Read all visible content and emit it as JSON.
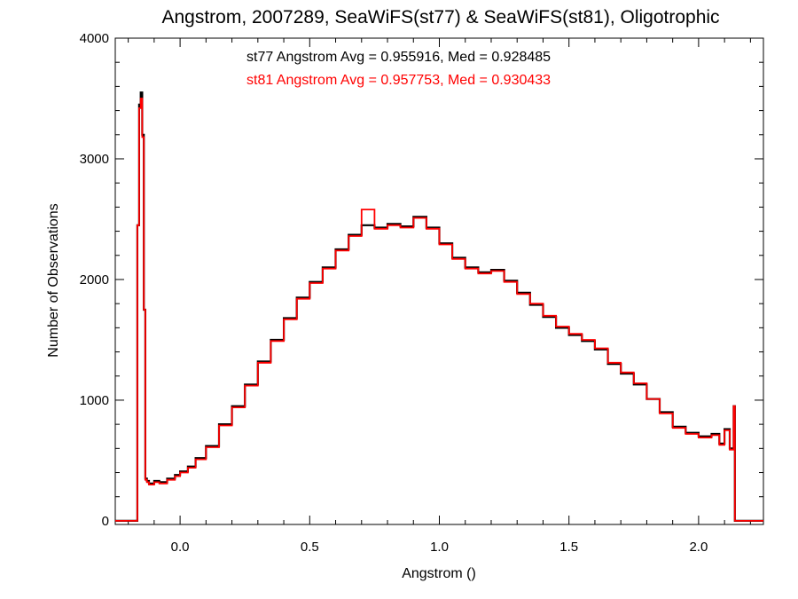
{
  "chart_data": {
    "type": "line",
    "title": "Angstrom, 2007289, SeaWiFS(st77) & SeaWiFS(st81), Oligotrophic",
    "xlabel": "Angstrom ()",
    "ylabel": "Number of Observations",
    "xlim": [
      -0.25,
      2.25
    ],
    "ylim": [
      -30,
      4000
    ],
    "x_ticks": [
      0.0,
      0.5,
      1.0,
      1.5,
      2.0
    ],
    "x_tick_labels": [
      "0.0",
      "0.5",
      "1.0",
      "1.5",
      "2.0"
    ],
    "y_ticks": [
      0,
      1000,
      2000,
      3000,
      4000
    ],
    "y_tick_labels": [
      "0",
      "1000",
      "2000",
      "3000",
      "4000"
    ],
    "grid": false,
    "step": true,
    "annotations": [
      {
        "text": "st77 Angstrom Avg = 0.955916, Med = 0.928485",
        "color": "#000000"
      },
      {
        "text": "st81 Angstrom Avg = 0.957753, Med = 0.930433",
        "color": "#ff0000"
      }
    ],
    "series": [
      {
        "color": "#000000",
        "x": [
          -0.25,
          -0.165,
          -0.158,
          -0.152,
          -0.146,
          -0.14,
          -0.134,
          -0.128,
          -0.12,
          -0.1,
          -0.08,
          -0.05,
          -0.02,
          0.0,
          0.03,
          0.06,
          0.1,
          0.15,
          0.2,
          0.25,
          0.3,
          0.35,
          0.4,
          0.45,
          0.5,
          0.55,
          0.6,
          0.65,
          0.7,
          0.75,
          0.8,
          0.85,
          0.9,
          0.95,
          1.0,
          1.05,
          1.1,
          1.15,
          1.2,
          1.25,
          1.3,
          1.35,
          1.4,
          1.45,
          1.5,
          1.55,
          1.6,
          1.65,
          1.7,
          1.75,
          1.8,
          1.85,
          1.9,
          1.95,
          2.0,
          2.05,
          2.08,
          2.1,
          2.12,
          2.135,
          2.14,
          2.25
        ],
        "y": [
          0,
          2450,
          3450,
          3550,
          3200,
          1750,
          350,
          330,
          310,
          330,
          320,
          350,
          380,
          410,
          450,
          520,
          620,
          800,
          950,
          1130,
          1320,
          1500,
          1680,
          1850,
          1980,
          2100,
          2250,
          2370,
          2450,
          2430,
          2460,
          2440,
          2520,
          2430,
          2300,
          2180,
          2100,
          2060,
          2080,
          1990,
          1890,
          1790,
          1690,
          1600,
          1540,
          1490,
          1420,
          1300,
          1220,
          1130,
          1010,
          900,
          780,
          730,
          700,
          720,
          640,
          760,
          600,
          950,
          0,
          0
        ]
      },
      {
        "color": "#ff0000",
        "x": [
          -0.25,
          -0.165,
          -0.158,
          -0.152,
          -0.146,
          -0.14,
          -0.134,
          -0.128,
          -0.12,
          -0.1,
          -0.08,
          -0.05,
          -0.02,
          0.0,
          0.03,
          0.06,
          0.1,
          0.15,
          0.2,
          0.25,
          0.3,
          0.35,
          0.4,
          0.45,
          0.5,
          0.55,
          0.6,
          0.65,
          0.7,
          0.75,
          0.8,
          0.85,
          0.9,
          0.95,
          1.0,
          1.05,
          1.1,
          1.15,
          1.2,
          1.25,
          1.3,
          1.35,
          1.4,
          1.45,
          1.5,
          1.55,
          1.6,
          1.65,
          1.7,
          1.75,
          1.8,
          1.85,
          1.9,
          1.95,
          2.0,
          2.05,
          2.08,
          2.1,
          2.12,
          2.135,
          2.14,
          2.25
        ],
        "y": [
          0,
          2450,
          3420,
          3500,
          3180,
          1750,
          340,
          320,
          300,
          320,
          310,
          340,
          370,
          400,
          440,
          510,
          610,
          790,
          940,
          1120,
          1310,
          1490,
          1670,
          1840,
          1970,
          2090,
          2240,
          2360,
          2580,
          2420,
          2450,
          2430,
          2510,
          2420,
          2290,
          2170,
          2090,
          2050,
          2070,
          1980,
          1880,
          1800,
          1700,
          1610,
          1550,
          1500,
          1430,
          1310,
          1230,
          1140,
          1010,
          890,
          770,
          720,
          690,
          710,
          630,
          750,
          590,
          950,
          0,
          0
        ]
      }
    ]
  }
}
